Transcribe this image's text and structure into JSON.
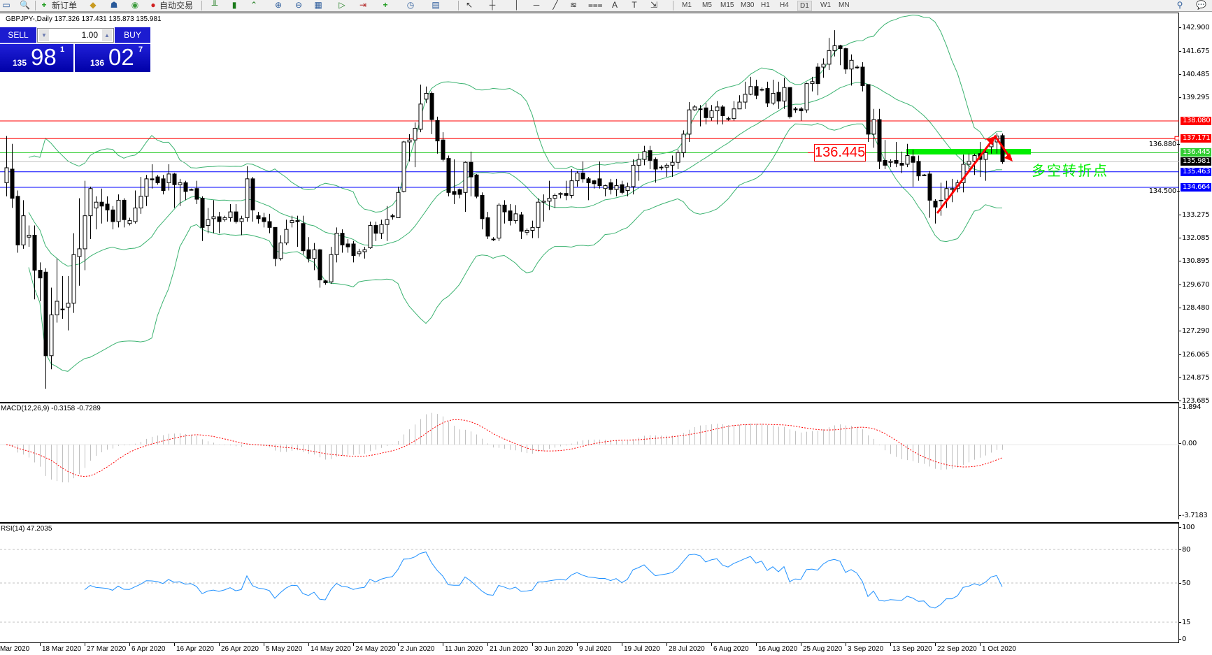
{
  "toolbar": {
    "new_order_label": "新订单",
    "auto_trading_label": "自动交易",
    "timeframes": [
      "M1",
      "M5",
      "M15",
      "M30",
      "H1",
      "H4",
      "D1",
      "W1",
      "MN"
    ],
    "active_timeframe": "D1",
    "icons": [
      "window-icon",
      "zoom-icon",
      "new-order-icon",
      "metaeditor-icon",
      "community-icon",
      "signals-icon",
      "auto-trading-icon",
      "bar-chart-icon",
      "candlestick-icon",
      "line-chart-icon",
      "zoom-in-icon",
      "zoom-out-icon",
      "tile-windows-icon",
      "auto-scroll-icon",
      "chart-shift-icon",
      "indicators-icon",
      "periods-icon",
      "templates-icon",
      "cursor-icon",
      "crosshair-icon",
      "vertical-line-icon",
      "horizontal-line-icon",
      "trendline-icon",
      "fibonacci-icon",
      "channel-icon",
      "text-icon",
      "text-label-icon",
      "arrows-icon",
      "search-icon",
      "chat-icon"
    ]
  },
  "chart": {
    "title": "GBPJPY-,Daily  137.326 137.431 135.873 135.981",
    "symbol": "GBPJPY-",
    "period": "Daily",
    "ohlc": {
      "open": 137.326,
      "high": 137.431,
      "low": 135.873,
      "close": 135.981
    }
  },
  "trade_panel": {
    "sell_label": "SELL",
    "buy_label": "BUY",
    "lot": "1.00",
    "sell_price": {
      "prefix": "135",
      "big": "98",
      "sup": "1"
    },
    "buy_price": {
      "prefix": "136",
      "big": "02",
      "sup": "7"
    }
  },
  "price_axis": [
    "142.900",
    "141.675",
    "140.485",
    "139.295",
    "136.880",
    "134.500",
    "133.275",
    "132.085",
    "130.895",
    "129.670",
    "128.480",
    "127.290",
    "126.065",
    "124.875",
    "123.685"
  ],
  "levels": [
    {
      "price": 138.08,
      "label": "138.080",
      "color": "#ff0000",
      "label_bg": "#ff0000"
    },
    {
      "price": 137.171,
      "label": "137.171",
      "color": "#ff0000",
      "label_bg": "#ff0000"
    },
    {
      "price": 136.445,
      "label": "136.445",
      "color": "#32cd32",
      "label_bg": "#32cd32"
    },
    {
      "price": 135.981,
      "label": "135.981",
      "color": "#c0c0c0",
      "label_bg": "#000000"
    },
    {
      "price": 135.463,
      "label": "135.463",
      "color": "#0000ff",
      "label_bg": "#0000ff"
    },
    {
      "price": 134.664,
      "label": "134.664",
      "color": "#0000ff",
      "label_bg": "#0000ff"
    }
  ],
  "annotations": {
    "price_box": "136.445",
    "zone_text": "多空转折点",
    "zone_color": "#00ee00",
    "arrow_color": "#ff0000"
  },
  "macd": {
    "title": "MACD(12,26,9) -0.3158 -0.7289",
    "axis": [
      {
        "v": 1.894,
        "t": "1.894"
      },
      {
        "v": 0,
        "t": "0.00"
      },
      {
        "v": -3.7183,
        "t": "-3.7183"
      }
    ],
    "hist_color": "#c0c0c0",
    "signal_color": "#ff0000"
  },
  "rsi": {
    "title": "RSI(14) 47.2035",
    "axis": [
      {
        "v": 100,
        "t": "100"
      },
      {
        "v": 80,
        "t": "80"
      },
      {
        "v": 50,
        "t": "50"
      },
      {
        "v": 15,
        "t": "15"
      },
      {
        "v": 0,
        "t": "0"
      }
    ],
    "levels": [
      80,
      50,
      15
    ],
    "color": "#1e90ff"
  },
  "bands_color": "#3cb371",
  "dates": [
    "Mar 2020",
    "18 Mar 2020",
    "27 Mar 2020",
    "6 Apr 2020",
    "16 Apr 2020",
    "26 Apr 2020",
    "5 May 2020",
    "14 May 2020",
    "24 May 2020",
    "2 Jun 2020",
    "11 Jun 2020",
    "21 Jun 2020",
    "30 Jun 2020",
    "9 Jul 2020",
    "19 Jul 2020",
    "28 Jul 2020",
    "6 Aug 2020",
    "16 Aug 2020",
    "25 Aug 2020",
    "3 Sep 2020",
    "13 Sep 2020",
    "22 Sep 2020",
    "1 Oct 2020"
  ],
  "chart_data": {
    "type": "candlestick",
    "ylim": [
      123.685,
      142.9
    ],
    "candles_ohlc": [
      [
        134.9,
        137.3,
        134.2,
        135.67
      ],
      [
        135.6,
        136.9,
        133.6,
        134.1
      ],
      [
        134.2,
        134.5,
        131.3,
        131.7
      ],
      [
        131.7,
        134.0,
        131.5,
        133.2
      ],
      [
        132.1,
        132.7,
        131.6,
        132.2
      ],
      [
        132.2,
        132.7,
        128.9,
        130.4
      ],
      [
        130.4,
        130.8,
        128.8,
        130.0
      ],
      [
        130.3,
        130.5,
        124.3,
        126.0
      ],
      [
        126.0,
        129.5,
        125.3,
        128.1
      ],
      [
        128.1,
        131.0,
        127.7,
        128.8
      ],
      [
        128.4,
        130.1,
        127.9,
        128.4
      ],
      [
        128.5,
        130.1,
        127.3,
        128.7
      ],
      [
        128.7,
        132.3,
        128.2,
        131.2
      ],
      [
        131.1,
        134.1,
        129.6,
        131.5
      ],
      [
        131.5,
        135.0,
        130.4,
        133.2
      ],
      [
        133.2,
        134.7,
        132.0,
        134.6
      ],
      [
        133.6,
        134.2,
        132.5,
        133.9
      ],
      [
        133.9,
        134.6,
        132.8,
        133.7
      ],
      [
        133.8,
        134.2,
        132.9,
        133.5
      ],
      [
        133.5,
        133.7,
        132.5,
        132.9
      ],
      [
        132.9,
        134.3,
        132.6,
        134.0
      ],
      [
        134.0,
        134.1,
        132.6,
        133.0
      ],
      [
        132.8,
        133.1,
        132.7,
        132.95
      ],
      [
        132.9,
        134.5,
        132.8,
        133.6
      ],
      [
        133.6,
        135.2,
        133.3,
        134.2
      ],
      [
        134.2,
        135.3,
        133.7,
        135.1
      ],
      [
        135.1,
        135.85,
        134.6,
        135.05
      ],
      [
        135.2,
        135.3,
        134.8,
        134.9
      ],
      [
        135.1,
        135.3,
        134.3,
        134.5
      ],
      [
        134.9,
        135.85,
        134.5,
        135.35
      ],
      [
        135.35,
        135.4,
        133.6,
        134.8
      ],
      [
        134.8,
        135.1,
        133.7,
        134.9
      ],
      [
        134.9,
        135.0,
        134.0,
        134.45
      ],
      [
        134.55,
        134.6,
        134.5,
        134.55
      ],
      [
        134.6,
        135.0,
        133.8,
        134.05
      ],
      [
        134.1,
        134.2,
        131.9,
        132.6
      ],
      [
        132.7,
        133.6,
        132.3,
        133.0
      ],
      [
        133.05,
        134.0,
        132.3,
        133.15
      ],
      [
        133.15,
        133.4,
        132.3,
        132.9
      ],
      [
        133.0,
        133.2,
        132.9,
        133.1
      ],
      [
        133.1,
        133.8,
        132.9,
        133.4
      ],
      [
        133.4,
        133.8,
        132.8,
        132.9
      ],
      [
        132.9,
        133.2,
        132.2,
        133.05
      ],
      [
        133.1,
        135.75,
        132.9,
        135.1
      ],
      [
        135.1,
        135.2,
        132.9,
        133.5
      ],
      [
        133.2,
        133.4,
        132.8,
        133.05
      ],
      [
        133.1,
        133.35,
        132.6,
        132.9
      ],
      [
        132.9,
        133.3,
        132.3,
        132.6
      ],
      [
        132.6,
        132.6,
        130.6,
        131.0
      ],
      [
        131.0,
        132.2,
        130.9,
        131.8
      ],
      [
        131.8,
        133.0,
        131.7,
        132.5
      ],
      [
        132.85,
        133.2,
        132.6,
        132.95
      ],
      [
        132.95,
        133.2,
        131.6,
        132.9
      ],
      [
        132.8,
        133.2,
        131.2,
        131.4
      ],
      [
        131.45,
        132.1,
        130.8,
        131.0
      ],
      [
        131.0,
        131.8,
        130.4,
        131.45
      ],
      [
        131.45,
        131.5,
        129.5,
        129.9
      ],
      [
        129.85,
        129.9,
        129.65,
        129.75
      ],
      [
        129.8,
        131.6,
        129.7,
        131.2
      ],
      [
        131.2,
        132.6,
        130.8,
        132.3
      ],
      [
        132.3,
        132.5,
        131.3,
        131.7
      ],
      [
        131.75,
        132.0,
        131.3,
        131.6
      ],
      [
        131.75,
        131.9,
        130.8,
        131.15
      ],
      [
        131.25,
        131.5,
        131.1,
        131.35
      ],
      [
        131.35,
        131.6,
        131.0,
        131.45
      ],
      [
        131.55,
        132.9,
        131.5,
        132.7
      ],
      [
        132.7,
        132.9,
        131.9,
        132.3
      ],
      [
        132.3,
        133.0,
        132.0,
        132.75
      ],
      [
        132.75,
        133.7,
        131.9,
        133.0
      ],
      [
        133.2,
        133.3,
        133.0,
        133.15
      ],
      [
        133.1,
        134.7,
        133.1,
        134.4
      ],
      [
        134.45,
        137.05,
        134.4,
        137.0
      ],
      [
        137.0,
        137.4,
        136.0,
        137.1
      ],
      [
        137.1,
        138.0,
        135.7,
        137.7
      ],
      [
        137.65,
        139.95,
        137.5,
        138.95
      ],
      [
        139.2,
        139.85,
        139.0,
        139.5
      ],
      [
        139.5,
        139.6,
        137.4,
        138.15
      ],
      [
        138.1,
        138.3,
        136.4,
        137.05
      ],
      [
        137.1,
        137.5,
        136.0,
        136.1
      ],
      [
        136.15,
        136.3,
        134.2,
        134.4
      ],
      [
        134.45,
        136.1,
        133.8,
        134.3
      ],
      [
        134.55,
        134.6,
        134.1,
        134.3
      ],
      [
        134.4,
        136.0,
        133.4,
        135.95
      ],
      [
        135.95,
        136.5,
        134.2,
        135.2
      ],
      [
        135.3,
        135.35,
        134.1,
        134.2
      ],
      [
        134.25,
        134.4,
        132.5,
        133.05
      ],
      [
        133.1,
        133.4,
        132.0,
        132.15
      ],
      [
        132.0,
        132.1,
        131.9,
        132.0
      ],
      [
        132.05,
        133.85,
        131.9,
        133.75
      ],
      [
        133.75,
        134.0,
        132.8,
        133.4
      ],
      [
        133.45,
        133.8,
        132.7,
        132.95
      ],
      [
        132.95,
        133.75,
        132.8,
        133.3
      ],
      [
        133.25,
        133.4,
        132.0,
        132.4
      ],
      [
        132.35,
        132.55,
        132.2,
        132.45
      ],
      [
        132.45,
        132.95,
        132.05,
        132.6
      ],
      [
        132.6,
        134.1,
        132.05,
        133.9
      ],
      [
        133.9,
        134.3,
        132.9,
        133.95
      ],
      [
        133.95,
        135.0,
        133.5,
        134.1
      ],
      [
        134.1,
        134.35,
        133.6,
        134.25
      ],
      [
        134.3,
        134.4,
        134.1,
        134.35
      ],
      [
        134.35,
        135.0,
        134.0,
        134.25
      ],
      [
        134.25,
        135.6,
        134.1,
        135.0
      ],
      [
        135.0,
        135.5,
        134.7,
        135.4
      ],
      [
        135.4,
        136.0,
        134.9,
        135.1
      ],
      [
        135.1,
        135.2,
        134.0,
        134.9
      ],
      [
        135.0,
        135.05,
        134.6,
        134.85
      ],
      [
        135.1,
        136.0,
        134.6,
        134.75
      ],
      [
        134.6,
        134.8,
        134.2,
        134.75
      ],
      [
        134.9,
        135.1,
        134.3,
        134.55
      ],
      [
        134.55,
        135.1,
        134.2,
        134.75
      ],
      [
        134.8,
        135.0,
        134.3,
        134.4
      ],
      [
        134.5,
        134.9,
        134.2,
        134.7
      ],
      [
        134.7,
        136.1,
        134.3,
        135.8
      ],
      [
        135.8,
        136.4,
        135.0,
        136.1
      ],
      [
        136.1,
        136.8,
        135.8,
        136.5
      ],
      [
        136.55,
        136.8,
        135.6,
        136.05
      ],
      [
        136.1,
        136.2,
        134.9,
        135.6
      ],
      [
        135.7,
        135.8,
        135.55,
        135.7
      ],
      [
        135.7,
        135.9,
        135.2,
        135.8
      ],
      [
        135.8,
        136.3,
        135.2,
        135.95
      ],
      [
        135.95,
        136.6,
        135.6,
        136.45
      ],
      [
        136.45,
        137.6,
        136.2,
        137.4
      ],
      [
        137.4,
        139.05,
        137.0,
        138.65
      ],
      [
        138.65,
        138.9,
        138.6,
        138.8
      ],
      [
        138.7,
        138.9,
        137.8,
        138.7
      ],
      [
        138.75,
        139.0,
        137.9,
        138.25
      ],
      [
        138.25,
        138.9,
        138.1,
        138.6
      ],
      [
        138.6,
        139.1,
        137.9,
        138.8
      ],
      [
        138.8,
        138.9,
        137.9,
        138.35
      ],
      [
        138.2,
        138.3,
        138.1,
        138.2
      ],
      [
        138.2,
        139.1,
        138.1,
        138.7
      ],
      [
        138.7,
        139.4,
        138.7,
        139.05
      ],
      [
        139.05,
        140.1,
        138.7,
        139.45
      ],
      [
        139.45,
        140.35,
        139.4,
        139.85
      ],
      [
        139.85,
        140.2,
        139.2,
        139.4
      ],
      [
        139.7,
        139.8,
        139.6,
        139.7
      ],
      [
        139.75,
        140.1,
        138.8,
        139.0
      ],
      [
        139.0,
        140.2,
        138.9,
        139.5
      ],
      [
        139.55,
        140.1,
        138.7,
        139.1
      ],
      [
        139.1,
        140.3,
        138.7,
        139.8
      ],
      [
        139.8,
        139.8,
        138.2,
        138.3
      ],
      [
        138.7,
        138.8,
        138.5,
        138.65
      ],
      [
        138.7,
        138.8,
        138.1,
        138.6
      ],
      [
        138.65,
        140.05,
        138.5,
        140.0
      ],
      [
        140.0,
        140.35,
        139.6,
        140.1
      ],
      [
        140.85,
        141.05,
        139.4,
        140.0
      ],
      [
        140.85,
        141.3,
        140.3,
        141.0
      ],
      [
        141.0,
        142.35,
        140.7,
        141.7
      ],
      [
        141.7,
        142.75,
        141.4,
        141.95
      ],
      [
        141.95,
        142.0,
        140.95,
        141.8
      ],
      [
        141.8,
        141.85,
        140.5,
        140.75
      ],
      [
        140.75,
        141.5,
        139.9,
        141.2
      ],
      [
        140.85,
        140.95,
        140.75,
        140.85
      ],
      [
        140.85,
        141.1,
        139.6,
        139.9
      ],
      [
        139.95,
        139.95,
        137.0,
        137.4
      ],
      [
        137.4,
        138.7,
        136.7,
        138.15
      ],
      [
        138.15,
        138.7,
        135.6,
        136.0
      ],
      [
        136.05,
        137.1,
        135.6,
        135.8
      ],
      [
        135.95,
        136.1,
        135.7,
        136.0
      ],
      [
        136.05,
        137.0,
        135.7,
        135.9
      ],
      [
        135.9,
        136.5,
        135.4,
        135.8
      ],
      [
        135.85,
        136.9,
        135.7,
        136.3
      ],
      [
        136.25,
        136.6,
        134.7,
        135.95
      ],
      [
        136.0,
        136.3,
        135.0,
        135.25
      ],
      [
        135.3,
        135.35,
        135.25,
        135.3
      ],
      [
        135.35,
        135.5,
        133.1,
        134.0
      ],
      [
        133.95,
        134.05,
        132.8,
        133.65
      ],
      [
        134.0,
        134.9,
        133.2,
        134.0
      ],
      [
        134.05,
        135.0,
        133.6,
        134.6
      ],
      [
        134.55,
        135.1,
        133.9,
        134.6
      ],
      [
        134.6,
        135.05,
        134.4,
        134.9
      ],
      [
        134.9,
        136.35,
        134.4,
        135.85
      ],
      [
        135.85,
        136.4,
        135.5,
        136.0
      ],
      [
        136.0,
        136.4,
        135.3,
        136.3
      ],
      [
        136.4,
        137.0,
        135.2,
        136.1
      ],
      [
        136.1,
        136.6,
        135.0,
        136.45
      ],
      [
        136.75,
        137.2,
        136.4,
        137.1
      ],
      [
        137.0,
        137.45,
        136.4,
        137.3
      ],
      [
        137.326,
        137.431,
        135.873,
        135.981
      ]
    ]
  }
}
